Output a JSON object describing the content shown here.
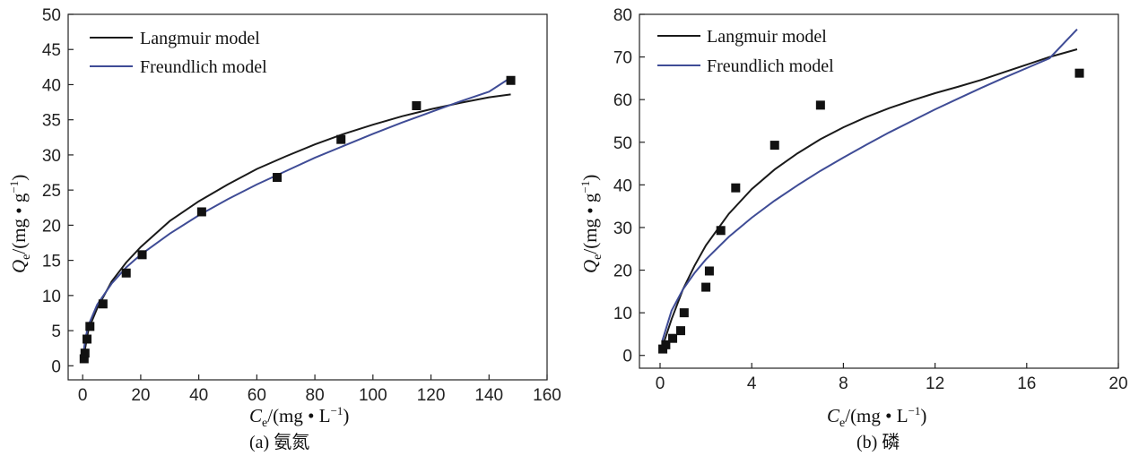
{
  "chart_data": [
    {
      "type": "scatter",
      "panel": "a",
      "caption": "(a) 氨氮",
      "xlabel": {
        "sym": "C",
        "sub": "e",
        "unit": "/(mg • L",
        "sup": "−1",
        "close": ")"
      },
      "ylabel": {
        "sym": "Q",
        "sub": "e",
        "unit": "/(mg • g",
        "sup": "−1",
        "close": ")"
      },
      "xlim": [
        -5,
        160
      ],
      "ylim": [
        -2,
        50
      ],
      "xticks": [
        0,
        20,
        40,
        60,
        80,
        100,
        120,
        140,
        160
      ],
      "yticks": [
        0,
        5,
        10,
        15,
        20,
        25,
        30,
        35,
        40,
        45,
        50
      ],
      "legend_position": "top-left",
      "points": [
        {
          "x": 0.5,
          "y": 1.0
        },
        {
          "x": 0.8,
          "y": 1.8
        },
        {
          "x": 1.5,
          "y": 3.8
        },
        {
          "x": 2.5,
          "y": 5.6
        },
        {
          "x": 7,
          "y": 8.8
        },
        {
          "x": 15,
          "y": 13.2
        },
        {
          "x": 20.5,
          "y": 15.8
        },
        {
          "x": 41,
          "y": 21.9
        },
        {
          "x": 67,
          "y": 26.8
        },
        {
          "x": 89,
          "y": 32.2
        },
        {
          "x": 115,
          "y": 37.0
        },
        {
          "x": 147.5,
          "y": 40.6
        }
      ],
      "series": [
        {
          "name": "Langmuir model",
          "color": "#1a1a1a",
          "x": [
            0.3,
            2,
            5,
            10,
            15,
            20,
            30,
            40,
            50,
            60,
            70,
            80,
            90,
            100,
            110,
            120,
            130,
            140,
            147.5
          ],
          "y": [
            1.2,
            5.2,
            8.2,
            12.0,
            14.7,
            16.9,
            20.6,
            23.4,
            25.8,
            28.0,
            29.8,
            31.5,
            33.0,
            34.3,
            35.5,
            36.5,
            37.4,
            38.2,
            38.6
          ]
        },
        {
          "name": "Freundlich model",
          "color": "#3f4c96",
          "x": [
            0.3,
            1,
            2,
            5,
            10,
            15,
            20,
            30,
            40,
            50,
            60,
            70,
            80,
            90,
            100,
            110,
            120,
            130,
            140,
            147.5
          ],
          "y": [
            2.0,
            4.0,
            5.8,
            8.7,
            11.7,
            14.0,
            15.8,
            18.8,
            21.4,
            23.7,
            25.8,
            27.7,
            29.6,
            31.3,
            33.0,
            34.6,
            36.1,
            37.6,
            39.0,
            41.0
          ]
        }
      ]
    },
    {
      "type": "scatter",
      "panel": "b",
      "caption": "(b) 磷",
      "xlabel": {
        "sym": "C",
        "sub": "e",
        "unit": "/(mg • L",
        "sup": "−1",
        "close": ")"
      },
      "ylabel": {
        "sym": "Q",
        "sub": "e",
        "unit": "/(mg • g",
        "sup": "−1",
        "close": ")"
      },
      "xlim": [
        -0.9,
        20
      ],
      "ylim": [
        -3,
        80
      ],
      "xticks": [
        0,
        4,
        8,
        12,
        16,
        20
      ],
      "yticks": [
        0,
        10,
        20,
        30,
        40,
        50,
        60,
        70,
        80
      ],
      "legend_position": "top-left",
      "points": [
        {
          "x": 0.12,
          "y": 1.5
        },
        {
          "x": 0.25,
          "y": 2.5
        },
        {
          "x": 0.55,
          "y": 4.0
        },
        {
          "x": 0.9,
          "y": 5.8
        },
        {
          "x": 1.05,
          "y": 10.0
        },
        {
          "x": 2.0,
          "y": 16.0
        },
        {
          "x": 2.15,
          "y": 19.8
        },
        {
          "x": 2.65,
          "y": 29.3
        },
        {
          "x": 3.3,
          "y": 39.3
        },
        {
          "x": 5.0,
          "y": 49.3
        },
        {
          "x": 7.0,
          "y": 58.7
        },
        {
          "x": 18.3,
          "y": 66.2
        }
      ],
      "series": [
        {
          "name": "Langmuir model",
          "color": "#1a1a1a",
          "x": [
            0.1,
            0.5,
            1,
            1.5,
            2,
            3,
            4,
            5,
            6,
            7,
            8,
            9,
            10,
            11,
            12,
            13,
            14,
            15,
            16,
            17,
            18.2
          ],
          "y": [
            2.0,
            8.5,
            15.5,
            21.0,
            25.8,
            33.2,
            39.0,
            43.6,
            47.4,
            50.7,
            53.5,
            55.9,
            58.0,
            59.8,
            61.5,
            63.0,
            64.6,
            66.4,
            68.2,
            70.0,
            71.8
          ]
        },
        {
          "name": "Freundlich model",
          "color": "#3f4c96",
          "x": [
            0.1,
            0.5,
            1,
            1.5,
            2,
            3,
            4,
            5,
            6,
            7,
            8,
            9,
            10,
            11,
            12,
            13,
            14,
            15,
            16,
            17,
            18.2
          ],
          "y": [
            3.5,
            10.5,
            15.5,
            19.3,
            22.5,
            27.8,
            32.3,
            36.3,
            39.9,
            43.3,
            46.4,
            49.4,
            52.3,
            55.0,
            57.7,
            60.2,
            62.7,
            65.1,
            67.4,
            69.7,
            76.5
          ]
        }
      ]
    }
  ]
}
